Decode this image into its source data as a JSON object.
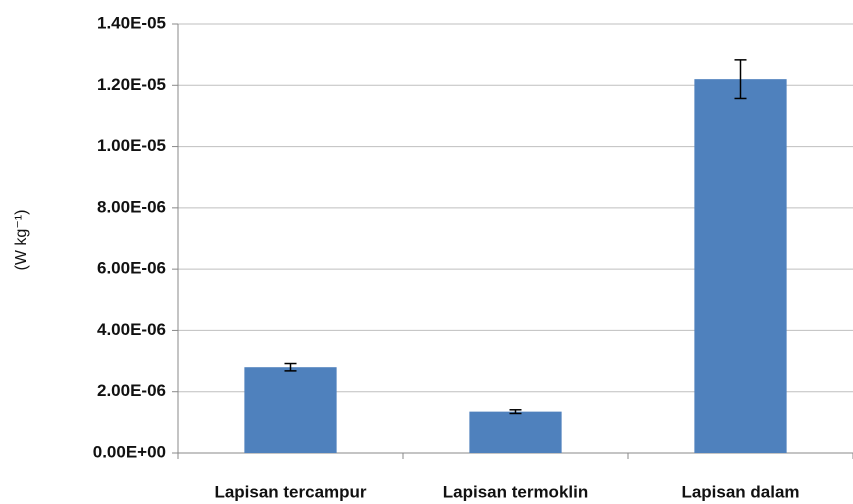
{
  "chart_data": {
    "type": "bar",
    "y_label": "(W kg⁻¹)",
    "categories": [
      "Lapisan tercampur",
      "Lapisan termoklin",
      "Lapisan dalam"
    ],
    "values": [
      2.8e-06,
      1.35e-06,
      1.22e-05
    ],
    "errors": [
      1.2e-07,
      6e-08,
      6.3e-07
    ],
    "color": "#4f81bd",
    "ylim": [
      0,
      1.4e-05
    ],
    "yticks": [
      {
        "value": 0,
        "label": "0.00E+00"
      },
      {
        "value": 2e-06,
        "label": "2.00E-06"
      },
      {
        "value": 4e-06,
        "label": "4.00E-06"
      },
      {
        "value": 6e-06,
        "label": "6.00E-06"
      },
      {
        "value": 8e-06,
        "label": "8.00E-06"
      },
      {
        "value": 1e-05,
        "label": "1.00E-05"
      },
      {
        "value": 1.2e-05,
        "label": "1.20E-05"
      },
      {
        "value": 1.4e-05,
        "label": "1.40E-05"
      }
    ],
    "grid": true
  }
}
